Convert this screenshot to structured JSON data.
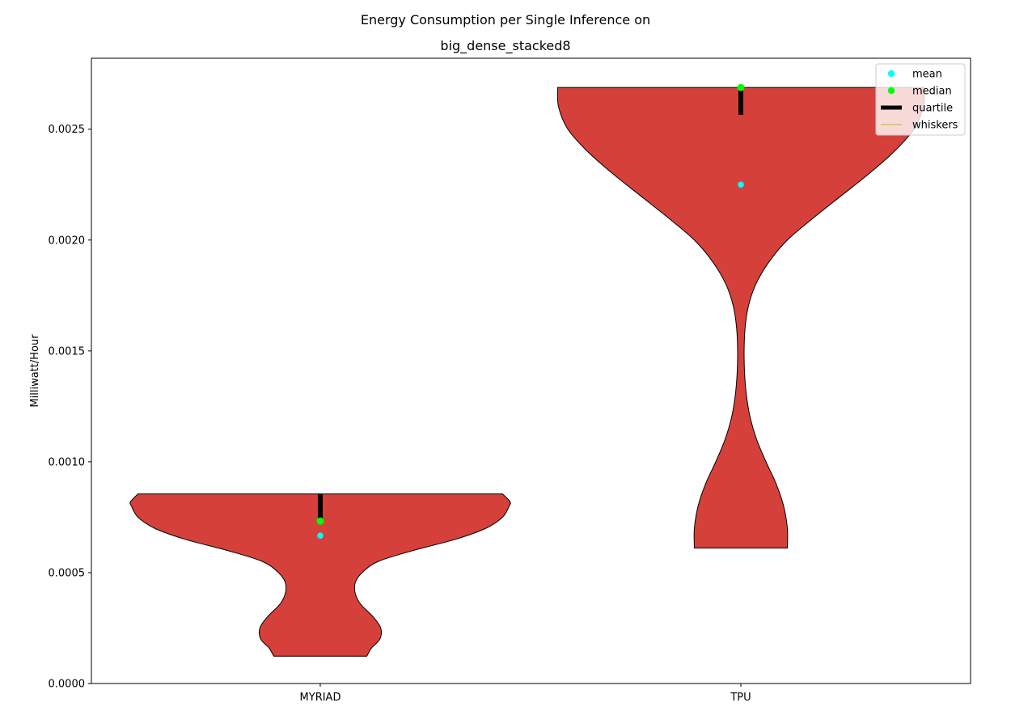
{
  "chart_data": {
    "type": "violin",
    "title_line1": "Energy Consumption per Single Inference on",
    "title_line2": "big_dense_stacked8",
    "xlabel": "",
    "ylabel": "Milliwatt/Hour",
    "categories": [
      "MYRIAD",
      "TPU"
    ],
    "ylim": [
      0,
      0.00282
    ],
    "yticks": [
      0.0,
      0.0005,
      0.001,
      0.0015,
      0.002,
      0.0025
    ],
    "ytick_labels": [
      "0.0000",
      "0.0005",
      "0.0010",
      "0.0015",
      "0.0020",
      "0.0025"
    ],
    "violins": [
      {
        "category": "MYRIAD",
        "min": 0.000123,
        "max": 0.000855,
        "mean": 0.000667,
        "median": 0.000733,
        "q1": 0.000733,
        "q3": 0.000855,
        "density_profile": [
          [
            0.000123,
            0.5
          ],
          [
            0.00016,
            0.55
          ],
          [
            0.0002,
            0.64
          ],
          [
            0.00025,
            0.65
          ],
          [
            0.0003,
            0.57
          ],
          [
            0.00035,
            0.45
          ],
          [
            0.00038,
            0.4
          ],
          [
            0.00042,
            0.37
          ],
          [
            0.00046,
            0.38
          ],
          [
            0.0005,
            0.45
          ],
          [
            0.00055,
            0.62
          ],
          [
            0.0006,
            1.0
          ],
          [
            0.00065,
            1.45
          ],
          [
            0.0007,
            1.78
          ],
          [
            0.00075,
            1.96
          ],
          [
            0.0008,
            2.03
          ],
          [
            0.00082,
            2.04
          ],
          [
            0.000855,
            1.96
          ]
        ]
      },
      {
        "category": "TPU",
        "min": 0.000611,
        "max": 0.002688,
        "mean": 0.00225,
        "median": 0.002688,
        "q1": 0.002565,
        "q3": 0.002688,
        "density_profile": [
          [
            0.000611,
            0.5
          ],
          [
            0.0007,
            0.5
          ],
          [
            0.0008,
            0.46
          ],
          [
            0.0009,
            0.38
          ],
          [
            0.001,
            0.27
          ],
          [
            0.0011,
            0.17
          ],
          [
            0.0012,
            0.1
          ],
          [
            0.0013,
            0.06
          ],
          [
            0.0014,
            0.04
          ],
          [
            0.0015,
            0.035
          ],
          [
            0.0016,
            0.045
          ],
          [
            0.0017,
            0.08
          ],
          [
            0.0018,
            0.16
          ],
          [
            0.0019,
            0.3
          ],
          [
            0.002,
            0.5
          ],
          [
            0.0021,
            0.78
          ],
          [
            0.0022,
            1.08
          ],
          [
            0.0023,
            1.38
          ],
          [
            0.0024,
            1.65
          ],
          [
            0.0025,
            1.86
          ],
          [
            0.0026,
            1.96
          ],
          [
            0.002688,
            1.97
          ]
        ]
      }
    ],
    "legend": {
      "placement": "upper right",
      "entries": [
        {
          "label": "mean",
          "kind": "marker",
          "color": "#00ffff"
        },
        {
          "label": "median",
          "kind": "marker",
          "color": "#00ff00"
        },
        {
          "label": "quartile",
          "kind": "thick-line",
          "color": "#000000"
        },
        {
          "label": "whiskers",
          "kind": "thin-line",
          "color": "#bfbf00"
        }
      ]
    },
    "colors": {
      "violin_fill": "#d6403a",
      "violin_edge": "#000000",
      "mean": "#00ffff",
      "median": "#00ff00",
      "quartile": "#000000",
      "whiskers": "#bfbf00"
    }
  }
}
